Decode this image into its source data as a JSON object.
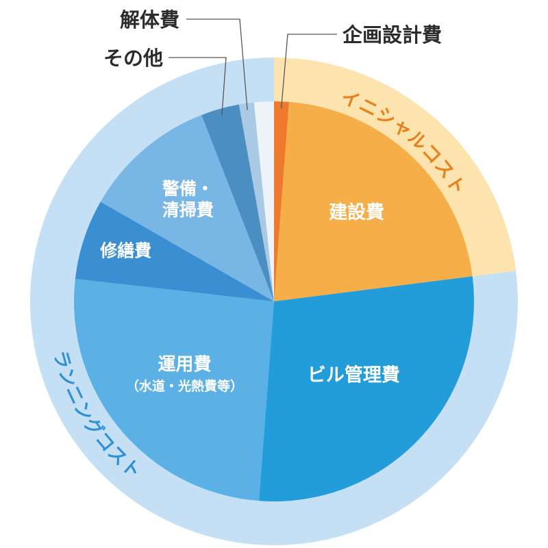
{
  "chart_data": {
    "type": "pie",
    "start_angle_deg": 0,
    "direction": "clockwise",
    "slices": [
      {
        "key": "planning",
        "label": "企画設計費",
        "value": 1.2,
        "color": "#EE7A2F",
        "group": "initial"
      },
      {
        "key": "construction",
        "label": "建設費",
        "value": 21.8,
        "color": "#F5AE48",
        "group": "initial"
      },
      {
        "key": "building_mgmt",
        "label": "ビル管理費",
        "value": 28.2,
        "color": "#239DDA",
        "group": "running"
      },
      {
        "key": "operation",
        "label": "運用費",
        "sublabel": "（水道・光熱費等）",
        "value": 25.6,
        "color": "#5BB0E5",
        "group": "running"
      },
      {
        "key": "repair",
        "label": "修繕費",
        "value": 6.5,
        "color": "#3A8FD3",
        "group": "running"
      },
      {
        "key": "security",
        "label": "警備・\n清掃費",
        "value": 10.8,
        "color": "#78B6E6",
        "group": "running"
      },
      {
        "key": "other",
        "label": "その他",
        "value": 3.1,
        "color": "#4B8EC1",
        "group": "running"
      },
      {
        "key": "demolition",
        "label": "解体費",
        "value": 1.2,
        "color": "#A9C9E4",
        "group": "running"
      },
      {
        "key": "gap",
        "label": "",
        "value": 1.6,
        "color": "#EEF3F8",
        "group": "running"
      }
    ],
    "rings": [
      {
        "key": "initial",
        "label": "イニシャルコスト",
        "color": "#FDE3AD",
        "text_color": "#E7811E"
      },
      {
        "key": "running",
        "label": "ランニングコスト",
        "color": "#C5E0F4",
        "text_color": "#2E92D4"
      }
    ],
    "legend": "none"
  }
}
